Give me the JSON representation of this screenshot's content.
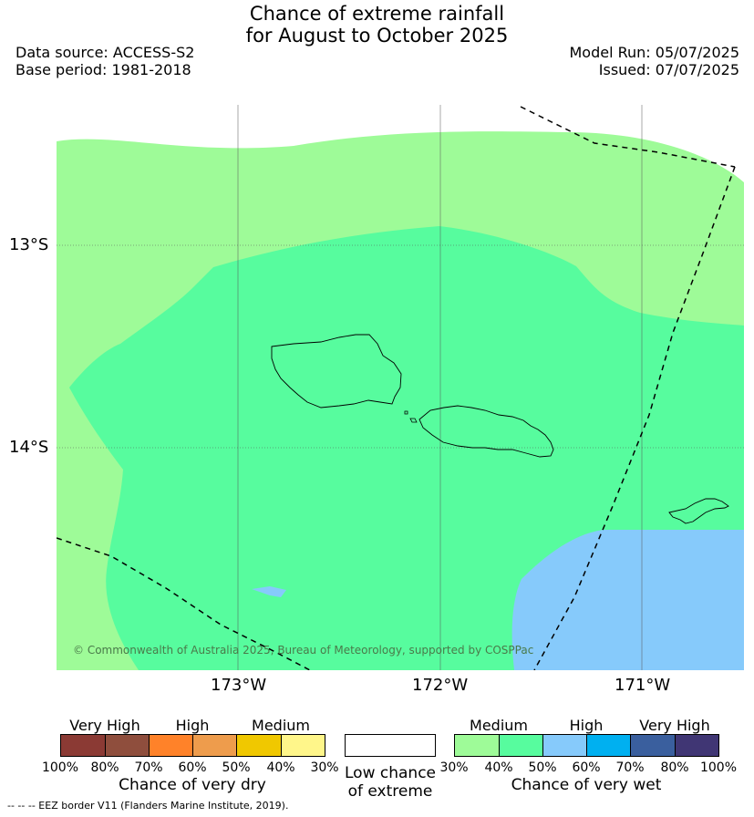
{
  "title": {
    "line1": "Chance of extreme rainfall",
    "line2": "for August to October 2025"
  },
  "meta": {
    "data_source": "Data source: ACCESS-S2",
    "base_period": "Base period: 1981-2018",
    "model_run": "Model Run: 05/07/2025",
    "issued": "Issued: 07/07/2025"
  },
  "map": {
    "lat_labels": [
      "13°S",
      "14°S"
    ],
    "lon_labels": [
      "173°W",
      "172°W",
      "171°W"
    ],
    "copyright": "© Commonwealth of Australia 2025, Bureau of Meteorology, supported by COSPPac",
    "colors": {
      "medium_30_40": "#9efb98",
      "medium_40_50": "#57fc9e",
      "high_50_60": "#86cafb"
    }
  },
  "legend_dry": {
    "categories": [
      "Very High",
      "High",
      "Medium"
    ],
    "percents": [
      "100%",
      "80%",
      "70%",
      "60%",
      "50%",
      "40%",
      "30%"
    ],
    "colors": [
      "#8b3a34",
      "#8f4e3d",
      "#ff8229",
      "#ee9c4c",
      "#f0c800",
      "#fff68a"
    ],
    "caption": "Chance of very dry"
  },
  "legend_low": {
    "line1": "Low chance",
    "line2": "of extreme",
    "color": "#ffffff"
  },
  "legend_wet": {
    "categories": [
      "Medium",
      "High",
      "Very High"
    ],
    "percents": [
      "30%",
      "40%",
      "50%",
      "60%",
      "70%",
      "80%",
      "100%"
    ],
    "colors": [
      "#9efb98",
      "#57fc9e",
      "#86cafb",
      "#00b0f0",
      "#3a5f9e",
      "#403674"
    ],
    "caption": "Chance of very wet"
  },
  "footer": {
    "eez_note": "-- -- -- EEZ border V11 (Flanders Marine Institute, 2019)."
  }
}
